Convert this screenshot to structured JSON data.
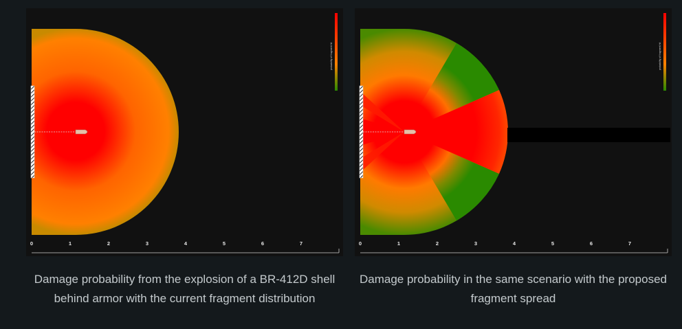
{
  "figures": [
    {
      "id": "current",
      "caption": "Damage probability from the explosion of a BR-412D shell behind armor with the current fragment distribution",
      "legend_label": "probability of fragment hit",
      "axis_ticks": [
        "0",
        "1",
        "2",
        "3",
        "4",
        "5",
        "6",
        "7"
      ]
    },
    {
      "id": "proposed",
      "caption": "Damage probability in the same scenario with the proposed fragment spread",
      "legend_label": "probability of fragment hit",
      "axis_ticks": [
        "0",
        "1",
        "2",
        "3",
        "4",
        "5",
        "6",
        "7"
      ]
    }
  ],
  "colors": {
    "high": "#ff0000",
    "mid": "#ff8000",
    "low": "#2a8a00",
    "background": "#111111"
  }
}
